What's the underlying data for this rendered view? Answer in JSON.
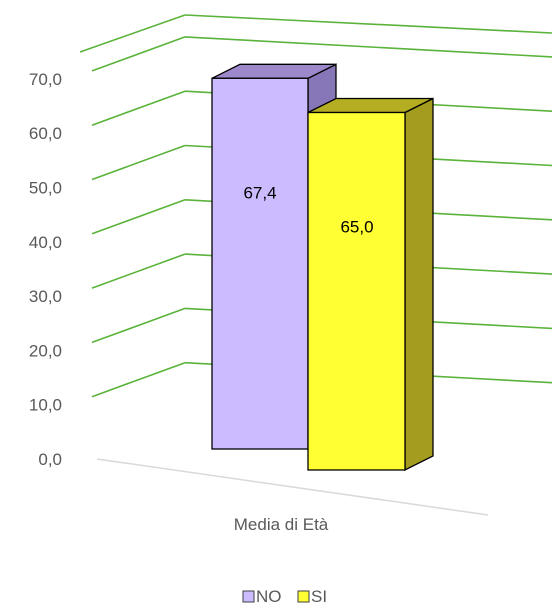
{
  "chart_data": {
    "type": "bar",
    "categories": [
      "Media di Età"
    ],
    "series": [
      {
        "name": "NO",
        "values": [
          67.4
        ],
        "color": "#ccbbff",
        "value_label": "67,4"
      },
      {
        "name": "SI",
        "values": [
          65.0
        ],
        "color": "#ffff33",
        "value_label": "65,0"
      }
    ],
    "yticks": [
      "0,0",
      "10,0",
      "20,0",
      "30,0",
      "40,0",
      "50,0",
      "60,0",
      "70,0"
    ],
    "ylim": [
      0,
      75
    ],
    "grid": true,
    "grid_color": "#5ab33a",
    "legend_position": "bottom",
    "style": "3d-column"
  }
}
